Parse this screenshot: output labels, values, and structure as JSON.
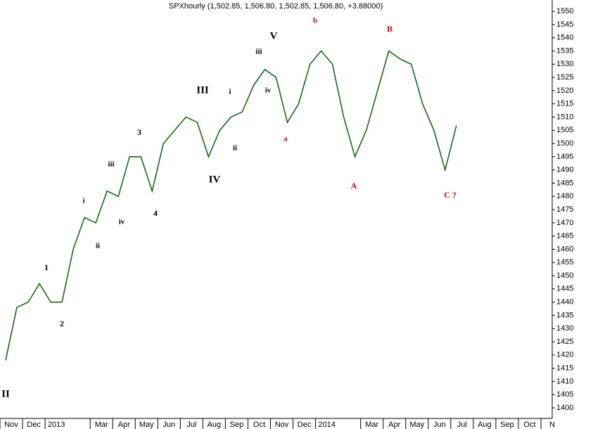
{
  "chart_data": {
    "type": "line",
    "title": "SPXhourly (1,502.85, 1,506.80, 1,502.85, 1,506.80, +3.88000)",
    "categories": [
      "Nov",
      null,
      "Dec",
      null,
      "2013",
      null,
      null,
      null,
      "Mar",
      null,
      "Apr",
      null,
      "May",
      null,
      "Jun",
      null,
      "Jul",
      null,
      "Aug",
      null,
      "Sep",
      null,
      "Oct",
      null,
      "Nov",
      null,
      "Dec",
      null,
      "2014",
      null,
      null,
      null,
      "Mar",
      null,
      "Apr",
      null,
      "May",
      null,
      "Jun",
      null,
      "Jul",
      null,
      "Aug",
      null,
      "Sep",
      null,
      "Oct",
      null,
      "N"
    ],
    "series": [
      {
        "name": "SPXhourly",
        "color": "#006400",
        "values": [
          1418,
          1438,
          1440,
          1447,
          1440,
          1440,
          1460,
          1472,
          1470,
          1482,
          1480,
          1495,
          1495,
          1482,
          1500,
          1505,
          1510,
          1508,
          1495,
          1505,
          1510,
          1512,
          1522,
          1528,
          1525,
          1508,
          1515,
          1530,
          1535,
          1530,
          1510,
          1495,
          1505,
          1520,
          1535,
          1532,
          1530,
          1515,
          1505,
          1490,
          1506.8,
          null,
          null,
          null,
          null,
          null,
          null,
          null,
          null
        ]
      }
    ],
    "ylim": [
      1396,
      1553.5
    ],
    "yticks": [
      1400,
      1405,
      1410,
      1415,
      1420,
      1425,
      1430,
      1435,
      1440,
      1445,
      1450,
      1455,
      1460,
      1465,
      1470,
      1475,
      1480,
      1485,
      1490,
      1495,
      1500,
      1505,
      1510,
      1515,
      1520,
      1525,
      1530,
      1535,
      1540,
      1545,
      1550
    ],
    "grid": false,
    "annotations": [
      {
        "text": "II",
        "color": "#000000"
      },
      {
        "text": "1",
        "color": "#000000"
      },
      {
        "text": "2",
        "color": "#000000"
      },
      {
        "text": "i",
        "color": "#000000"
      },
      {
        "text": "ii",
        "color": "#000000"
      },
      {
        "text": "iii",
        "color": "#000000"
      },
      {
        "text": "iv",
        "color": "#000000"
      },
      {
        "text": "3",
        "color": "#000000"
      },
      {
        "text": "4",
        "color": "#000000"
      },
      {
        "text": "III",
        "color": "#000000"
      },
      {
        "text": "IV",
        "color": "#000000"
      },
      {
        "text": "i",
        "color": "#000000"
      },
      {
        "text": "ii",
        "color": "#000000"
      },
      {
        "text": "iii",
        "color": "#000000"
      },
      {
        "text": "iv",
        "color": "#000000"
      },
      {
        "text": "V",
        "color": "#000000"
      },
      {
        "text": "a",
        "color": "#cc0000"
      },
      {
        "text": "b",
        "color": "#cc0000"
      },
      {
        "text": "A",
        "color": "#cc0000"
      },
      {
        "text": "B",
        "color": "#cc0000"
      },
      {
        "text": "C ?",
        "color": "#cc0000"
      }
    ]
  }
}
